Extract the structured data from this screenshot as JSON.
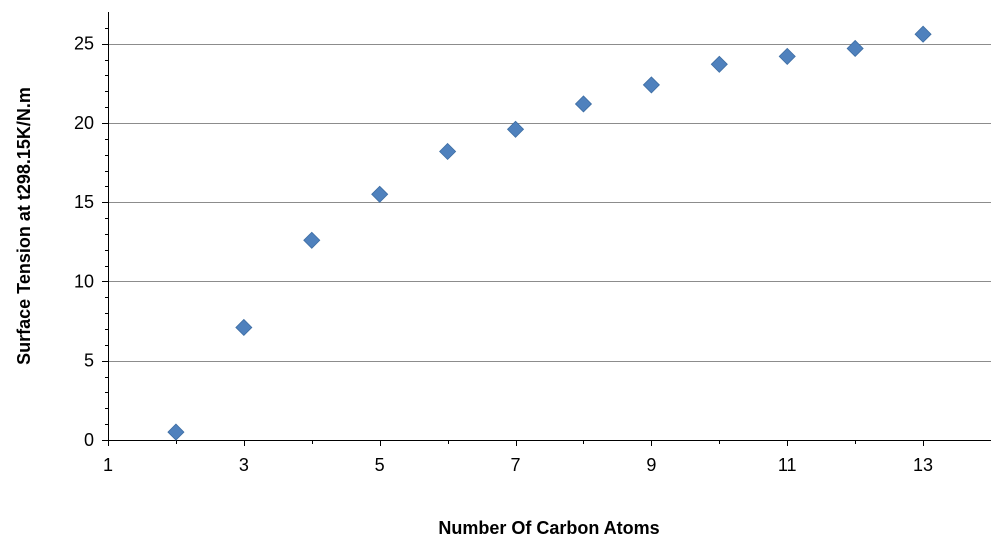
{
  "chart_data": {
    "type": "scatter",
    "title": "",
    "xlabel": "Number Of Carbon Atoms",
    "ylabel": "Surface Tension at t298.15K/N.m",
    "xlim": [
      1,
      14
    ],
    "ylim": [
      0,
      27
    ],
    "x_ticks": [
      1,
      3,
      5,
      7,
      9,
      11,
      13
    ],
    "y_ticks": [
      0,
      5,
      10,
      15,
      20,
      25
    ],
    "grid": "horizontal major gridlines",
    "legend": "none",
    "marker": "diamond",
    "series": [
      {
        "color": "#4F81BD",
        "points": [
          {
            "x": 2,
            "y": 0.5
          },
          {
            "x": 3,
            "y": 7.1
          },
          {
            "x": 4,
            "y": 12.6
          },
          {
            "x": 5,
            "y": 15.5
          },
          {
            "x": 6,
            "y": 18.2
          },
          {
            "x": 7,
            "y": 19.6
          },
          {
            "x": 8,
            "y": 21.2
          },
          {
            "x": 9,
            "y": 22.4
          },
          {
            "x": 10,
            "y": 23.7
          },
          {
            "x": 11,
            "y": 24.2
          },
          {
            "x": 12,
            "y": 24.7
          },
          {
            "x": 13,
            "y": 25.6
          }
        ]
      }
    ]
  }
}
